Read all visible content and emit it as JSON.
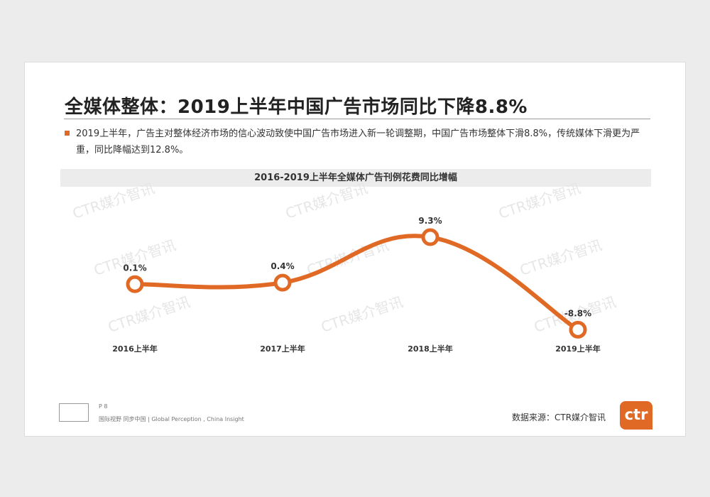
{
  "slide": {
    "title": "全媒体整体：2019上半年中国广告市场同比下降8.8%",
    "bullet": "2019上半年，广告主对整体经济市场的信心波动致使中国广告市场进入新一轮调整期，中国广告市场整体下滑8.8%，传统媒体下滑更为严重，同比降幅达到12.8%。",
    "watermark": "CTR媒介智讯",
    "footer": {
      "page": "P 8",
      "tagline": "国际视野  同步中国 | Global Perception , China Insight",
      "source": "数据来源：CTR媒介智讯",
      "logo_text": "ctr"
    }
  },
  "chart_data": {
    "type": "line",
    "title": "2016-2019上半年全媒体广告刊例花费同比增幅",
    "categories": [
      "2016上半年",
      "2017上半年",
      "2018上半年",
      "2019上半年"
    ],
    "values": [
      0.1,
      0.4,
      9.3,
      -8.8
    ],
    "labels": [
      "0.1%",
      "0.4%",
      "9.3%",
      "-8.8%"
    ],
    "unit": "%",
    "ylim": [
      -10,
      10
    ],
    "grid": false,
    "color": "#e06a25"
  }
}
